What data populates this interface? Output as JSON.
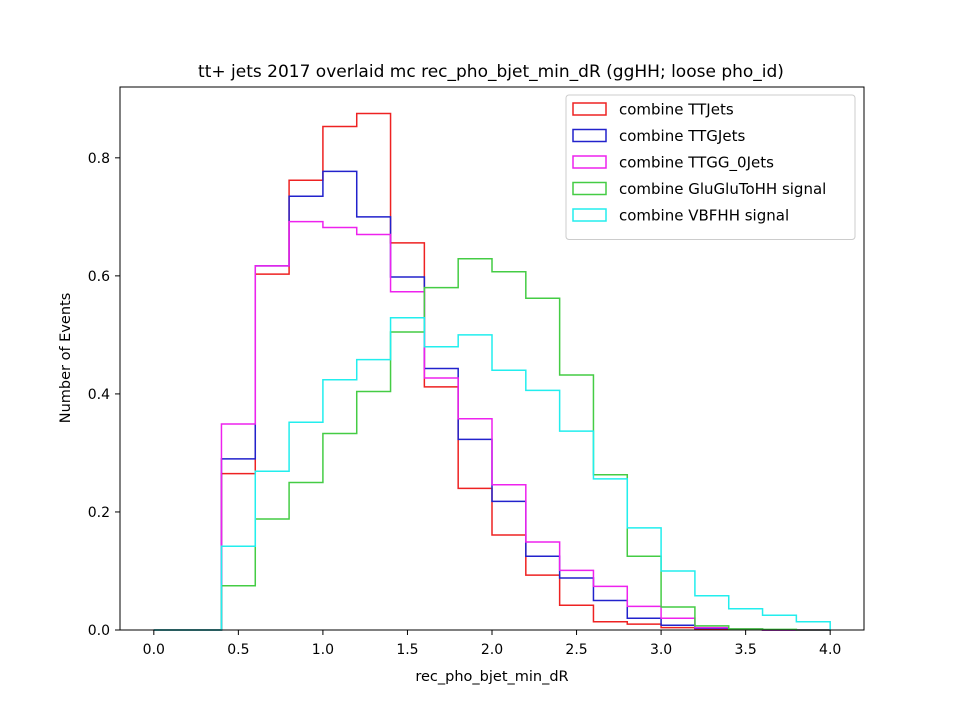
{
  "chart_data": {
    "type": "histogram-step",
    "title": "tt+ jets 2017 overlaid mc rec_pho_bjet_min_dR (ggHH; loose pho_id)",
    "xlabel": "rec_pho_bjet_min_dR",
    "ylabel": "Number of Events",
    "xlim": [
      -0.2,
      4.2
    ],
    "ylim": [
      0.0,
      0.92
    ],
    "xticks": [
      "0.0",
      "0.5",
      "1.0",
      "1.5",
      "2.0",
      "2.5",
      "3.0",
      "3.5",
      "4.0"
    ],
    "yticks": [
      "0.0",
      "0.2",
      "0.4",
      "0.6",
      "0.8"
    ],
    "grid": false,
    "legend_position": "top-right",
    "bin_edges": [
      0.0,
      0.2,
      0.4,
      0.6,
      0.8,
      1.0,
      1.2,
      1.4,
      1.6,
      1.8,
      2.0,
      2.2,
      2.4,
      2.6,
      2.8,
      3.0,
      3.2,
      3.4,
      3.6,
      3.8,
      4.0
    ],
    "series": [
      {
        "name": "combine TTJets",
        "color": "#ee2222",
        "values": [
          0.0,
          0.0,
          0.265,
          0.603,
          0.762,
          0.853,
          0.875,
          0.656,
          0.412,
          0.24,
          0.161,
          0.093,
          0.042,
          0.014,
          0.01,
          0.004,
          0.002,
          0.001,
          0.0,
          0.0
        ]
      },
      {
        "name": "combine TTGJets",
        "color": "#2222cc",
        "values": [
          0.0,
          0.0,
          0.29,
          0.617,
          0.735,
          0.777,
          0.7,
          0.598,
          0.443,
          0.323,
          0.218,
          0.125,
          0.088,
          0.05,
          0.02,
          0.008,
          0.003,
          0.001,
          0.0,
          0.0
        ]
      },
      {
        "name": "combine TTGG_0Jets",
        "color": "#ee22ee",
        "values": [
          0.0,
          0.0,
          0.349,
          0.617,
          0.692,
          0.682,
          0.67,
          0.573,
          0.427,
          0.358,
          0.246,
          0.149,
          0.101,
          0.074,
          0.04,
          0.02,
          0.004,
          0.002,
          0.0,
          0.0
        ]
      },
      {
        "name": "combine GluGluToHH signal",
        "color": "#44cc44",
        "values": [
          0.0,
          0.0,
          0.075,
          0.188,
          0.25,
          0.333,
          0.404,
          0.505,
          0.58,
          0.629,
          0.607,
          0.562,
          0.432,
          0.263,
          0.125,
          0.039,
          0.007,
          0.002,
          0.001,
          0.0
        ]
      },
      {
        "name": "combine VBFHH signal",
        "color": "#22eeee",
        "values": [
          0.0,
          0.0,
          0.142,
          0.269,
          0.352,
          0.424,
          0.458,
          0.529,
          0.48,
          0.5,
          0.44,
          0.406,
          0.337,
          0.256,
          0.173,
          0.1,
          0.058,
          0.036,
          0.025,
          0.014
        ]
      }
    ]
  }
}
